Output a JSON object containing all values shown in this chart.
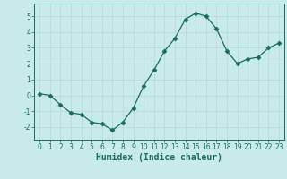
{
  "xlabel": "Humidex (Indice chaleur)",
  "ylabel": "",
  "x": [
    0,
    1,
    2,
    3,
    4,
    5,
    6,
    7,
    8,
    9,
    10,
    11,
    12,
    13,
    14,
    15,
    16,
    17,
    18,
    19,
    20,
    21,
    22,
    23
  ],
  "y": [
    0.1,
    0.0,
    -0.6,
    -1.1,
    -1.2,
    -1.7,
    -1.8,
    -2.2,
    -1.7,
    -0.8,
    0.6,
    1.6,
    2.8,
    3.6,
    4.8,
    5.2,
    5.0,
    4.2,
    2.8,
    2.0,
    2.3,
    2.4,
    3.0,
    3.3
  ],
  "line_color": "#1a6b5a",
  "marker": "D",
  "marker_size": 2.5,
  "bg_color": "#c8eaea",
  "grid_color": "#b8d8d8",
  "xlim": [
    -0.5,
    23.5
  ],
  "ylim": [
    -2.8,
    5.8
  ],
  "yticks": [
    -2,
    -1,
    0,
    1,
    2,
    3,
    4,
    5
  ],
  "xticks": [
    0,
    1,
    2,
    3,
    4,
    5,
    6,
    7,
    8,
    9,
    10,
    11,
    12,
    13,
    14,
    15,
    16,
    17,
    18,
    19,
    20,
    21,
    22,
    23
  ],
  "tick_fontsize": 5.5,
  "label_fontsize": 7
}
